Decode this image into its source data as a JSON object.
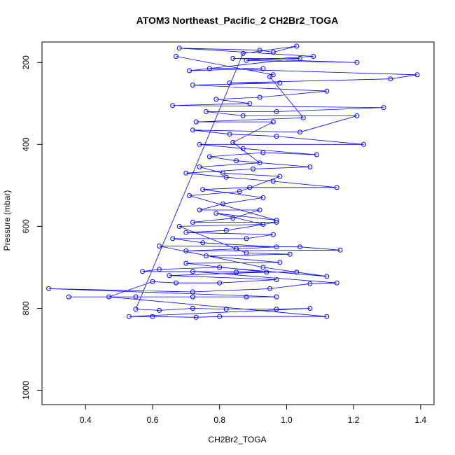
{
  "chart_data": {
    "type": "line",
    "title": "ATOM3 Northeast_Pacific_2 CH2Br2_TOGA",
    "xlabel": "CH2Br2_TOGA",
    "ylabel": "Pressure (mbar)",
    "xlim": [
      0.27,
      1.44
    ],
    "ylim": [
      1035,
      150
    ],
    "y_reversed": true,
    "x_ticks": [
      0.4,
      0.6,
      0.8,
      1.0,
      1.2,
      1.4
    ],
    "x_tick_labels": [
      "0.4",
      "0.6",
      "0.8",
      "1.0",
      "1.2",
      "1.4"
    ],
    "y_ticks": [
      200,
      400,
      600,
      800,
      1000
    ],
    "y_tick_labels": [
      "200",
      "400",
      "600",
      "800",
      "1000"
    ],
    "grid": false,
    "marker": "open-circle",
    "series_color": "#0000ff",
    "series": [
      {
        "name": "",
        "points": [
          [
            0.35,
            772
          ],
          [
            0.55,
            772
          ],
          [
            0.72,
            772
          ],
          [
            0.88,
            772
          ],
          [
            0.97,
            772
          ],
          [
            0.29,
            752
          ],
          [
            0.72,
            760
          ],
          [
            0.95,
            752
          ],
          [
            1.07,
            740
          ],
          [
            1.15,
            738
          ],
          [
            0.72,
            710
          ],
          [
            0.85,
            712
          ],
          [
            1.03,
            712
          ],
          [
            0.57,
            710
          ],
          [
            0.62,
            705
          ],
          [
            0.8,
            700
          ],
          [
            1.12,
            722
          ],
          [
            0.93,
            700
          ],
          [
            0.62,
            648
          ],
          [
            1.04,
            650
          ],
          [
            1.16,
            658
          ],
          [
            0.7,
            660
          ],
          [
            0.85,
            655
          ],
          [
            0.97,
            650
          ],
          [
            0.75,
            640
          ],
          [
            0.66,
            630
          ],
          [
            0.88,
            630
          ],
          [
            0.96,
            620
          ],
          [
            0.7,
            615
          ],
          [
            0.82,
            610
          ],
          [
            0.97,
            590
          ],
          [
            0.72,
            590
          ],
          [
            0.84,
            580
          ],
          [
            0.92,
            560
          ],
          [
            0.74,
            560
          ],
          [
            0.81,
            545
          ],
          [
            0.93,
            530
          ],
          [
            0.75,
            510
          ],
          [
            0.89,
            505
          ],
          [
            1.15,
            505
          ],
          [
            0.96,
            490
          ],
          [
            0.82,
            480
          ],
          [
            0.7,
            470
          ],
          [
            0.9,
            460
          ],
          [
            1.07,
            455
          ],
          [
            0.85,
            440
          ],
          [
            0.77,
            430
          ],
          [
            0.93,
            420
          ],
          [
            1.09,
            425
          ],
          [
            0.87,
            410
          ],
          [
            0.74,
            400
          ],
          [
            1.23,
            400
          ],
          [
            0.97,
            380
          ],
          [
            0.83,
            375
          ],
          [
            0.72,
            365
          ],
          [
            1.04,
            370
          ],
          [
            1.21,
            330
          ],
          [
            0.87,
            330
          ],
          [
            0.76,
            320
          ],
          [
            0.97,
            320
          ],
          [
            1.29,
            310
          ],
          [
            0.66,
            305
          ],
          [
            0.89,
            300
          ],
          [
            0.79,
            290
          ],
          [
            0.92,
            285
          ],
          [
            1.12,
            270
          ],
          [
            0.72,
            255
          ],
          [
            0.98,
            250
          ],
          [
            0.83,
            250
          ],
          [
            1.31,
            240
          ],
          [
            1.39,
            230
          ],
          [
            0.77,
            215
          ],
          [
            0.93,
            215
          ],
          [
            0.71,
            220
          ],
          [
            1.04,
            190
          ],
          [
            0.84,
            190
          ],
          [
            1.21,
            200
          ],
          [
            0.88,
            195
          ],
          [
            1.08,
            185
          ],
          [
            0.68,
            165
          ],
          [
            0.92,
            170
          ],
          [
            0.96,
            175
          ],
          [
            1.03,
            160
          ],
          [
            0.87,
            178
          ],
          [
            0.55,
            802
          ],
          [
            0.62,
            805
          ],
          [
            0.72,
            800
          ],
          [
            0.82,
            802
          ],
          [
            0.97,
            802
          ],
          [
            1.07,
            800
          ],
          [
            0.53,
            820
          ],
          [
            0.6,
            820
          ],
          [
            0.73,
            822
          ],
          [
            0.8,
            820
          ],
          [
            1.12,
            820
          ],
          [
            0.47,
            772
          ],
          [
            0.6,
            735
          ],
          [
            0.67,
            738
          ],
          [
            0.8,
            738
          ],
          [
            0.97,
            730
          ],
          [
            0.65,
            720
          ],
          [
            0.94,
            712
          ],
          [
            0.7,
            690
          ],
          [
            0.98,
            688
          ],
          [
            0.76,
            672
          ],
          [
            1.01,
            668
          ],
          [
            0.88,
            665
          ],
          [
            0.68,
            600
          ],
          [
            0.93,
            595
          ],
          [
            0.79,
            568
          ],
          [
            0.97,
            585
          ],
          [
            0.71,
            525
          ],
          [
            0.86,
            515
          ],
          [
            0.98,
            478
          ],
          [
            0.81,
            470
          ],
          [
            0.74,
            455
          ],
          [
            0.92,
            445
          ],
          [
            0.84,
            395
          ],
          [
            0.96,
            345
          ],
          [
            0.73,
            345
          ],
          [
            1.05,
            335
          ],
          [
            0.95,
            235
          ],
          [
            0.96,
            230
          ],
          [
            0.67,
            185
          ]
        ]
      }
    ]
  }
}
